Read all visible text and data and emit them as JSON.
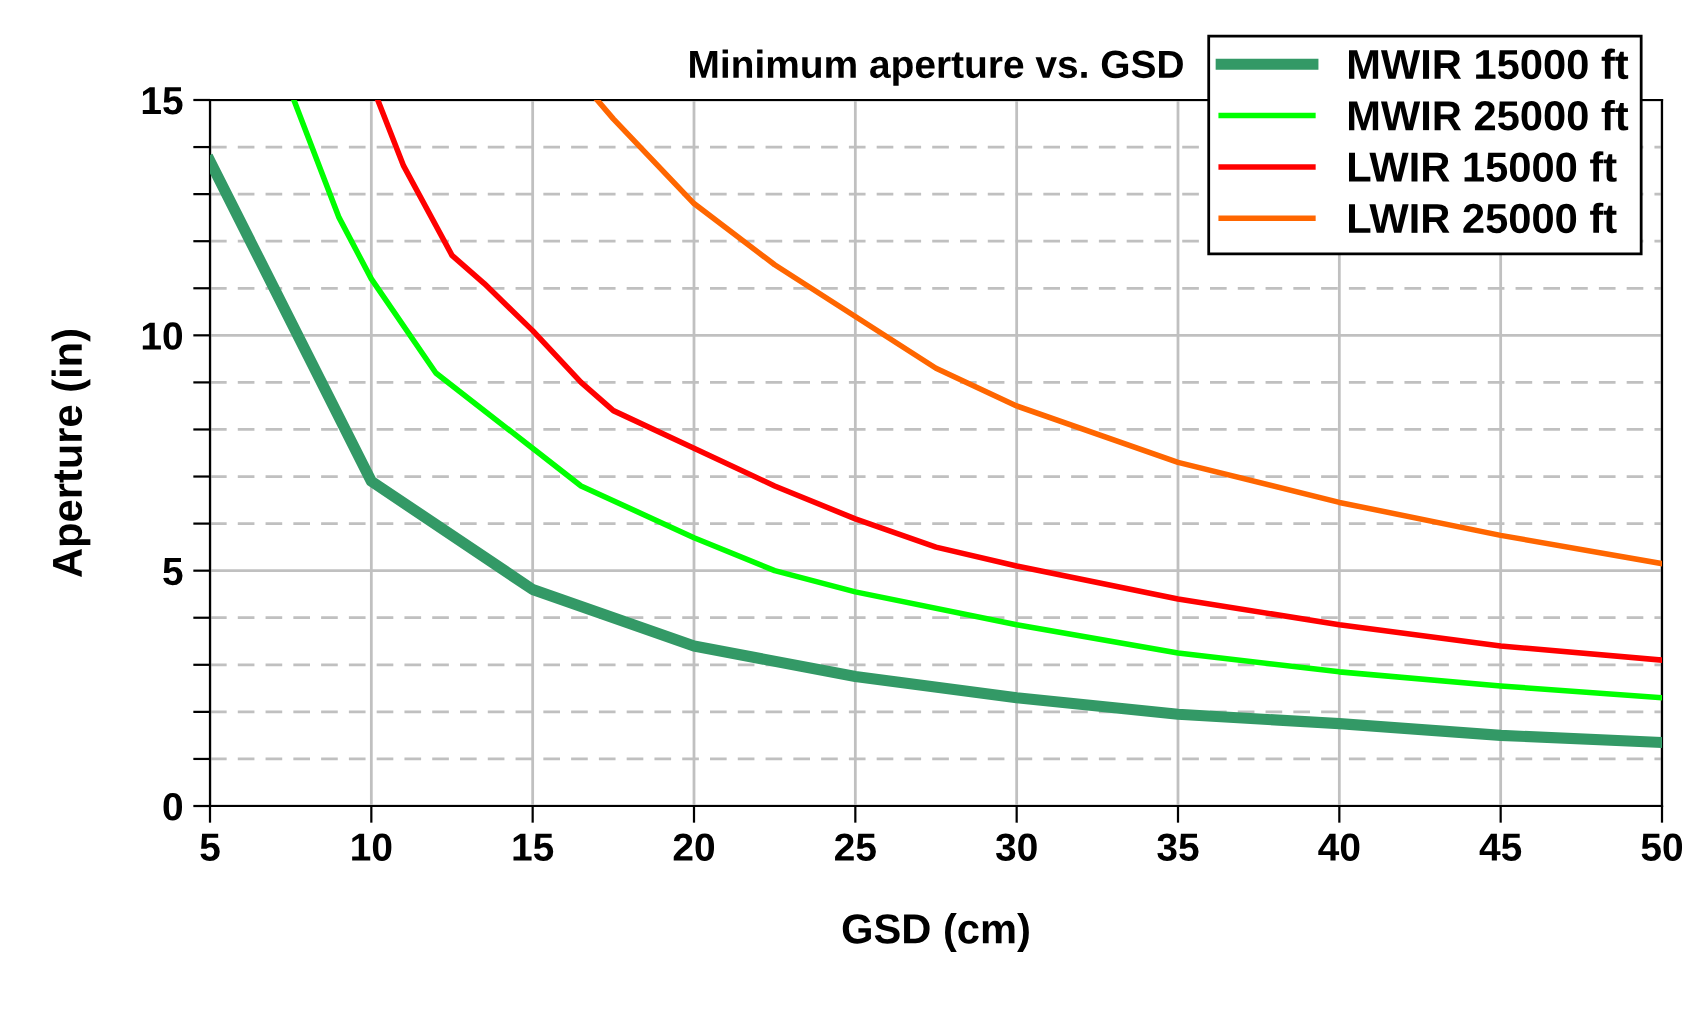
{
  "chart_data": {
    "type": "line",
    "title": "Minimum aperture vs. GSD",
    "xlabel": "GSD (cm)",
    "ylabel": "Aperture (in)",
    "xlim": [
      5,
      50
    ],
    "xticks": [
      5,
      10,
      15,
      20,
      25,
      30,
      35,
      40,
      45,
      50
    ],
    "ylim": [
      0,
      15
    ],
    "yticks": [
      0,
      {
        "value": 1,
        "label": null
      },
      {
        "value": 2,
        "label": null
      },
      {
        "value": 3,
        "label": null
      },
      {
        "value": 4,
        "label": null
      },
      5,
      {
        "value": 6,
        "label": null
      },
      {
        "value": 7,
        "label": null
      },
      {
        "value": 8,
        "label": null
      },
      {
        "value": 9,
        "label": null
      },
      10,
      {
        "value": 11,
        "label": null
      },
      {
        "value": 12,
        "label": null
      },
      {
        "value": 13,
        "label": null
      },
      {
        "value": 14,
        "label": null
      },
      15
    ],
    "grid": true,
    "legend": "top right",
    "marker": "none",
    "line_style": "solid",
    "series": [
      {
        "name": "MWIR 15000 ft",
        "color": "#339966",
        "x": [
          5,
          10,
          15,
          20,
          25,
          30,
          35,
          40,
          45,
          50
        ],
        "values": [
          13.7,
          6.9,
          4.6,
          3.4,
          2.75,
          2.3,
          1.95,
          1.75,
          1.5,
          1.35
        ]
      },
      {
        "name": "MWIR 25000 ft",
        "color": "#00ff00",
        "x": [
          7.6,
          9,
          10,
          12,
          15,
          16.5,
          20,
          22.5,
          25,
          30,
          35,
          40,
          45,
          50
        ],
        "values": [
          15,
          12.5,
          11.2,
          9.2,
          7.6,
          6.8,
          5.7,
          5.0,
          4.55,
          3.85,
          3.25,
          2.85,
          2.55,
          2.3
        ]
      },
      {
        "name": "LWIR 15000 ft",
        "color": "#ff0000",
        "x": [
          10.2,
          11,
          12.5,
          13.5,
          15,
          16.5,
          17.5,
          20,
          22.5,
          25,
          27.5,
          30,
          35,
          40,
          45,
          50
        ],
        "values": [
          15,
          13.6,
          11.7,
          11.1,
          10.1,
          9.0,
          8.4,
          7.6,
          6.8,
          6.1,
          5.5,
          5.1,
          4.4,
          3.85,
          3.4,
          3.1
        ]
      },
      {
        "name": "LWIR 25000 ft",
        "color": "#ff6600",
        "x": [
          17,
          17.5,
          20,
          22.5,
          25,
          27.5,
          30,
          35,
          40,
          45,
          50
        ],
        "values": [
          15,
          14.6,
          12.8,
          11.5,
          10.4,
          9.3,
          8.5,
          7.3,
          6.45,
          5.75,
          5.15
        ]
      }
    ]
  }
}
